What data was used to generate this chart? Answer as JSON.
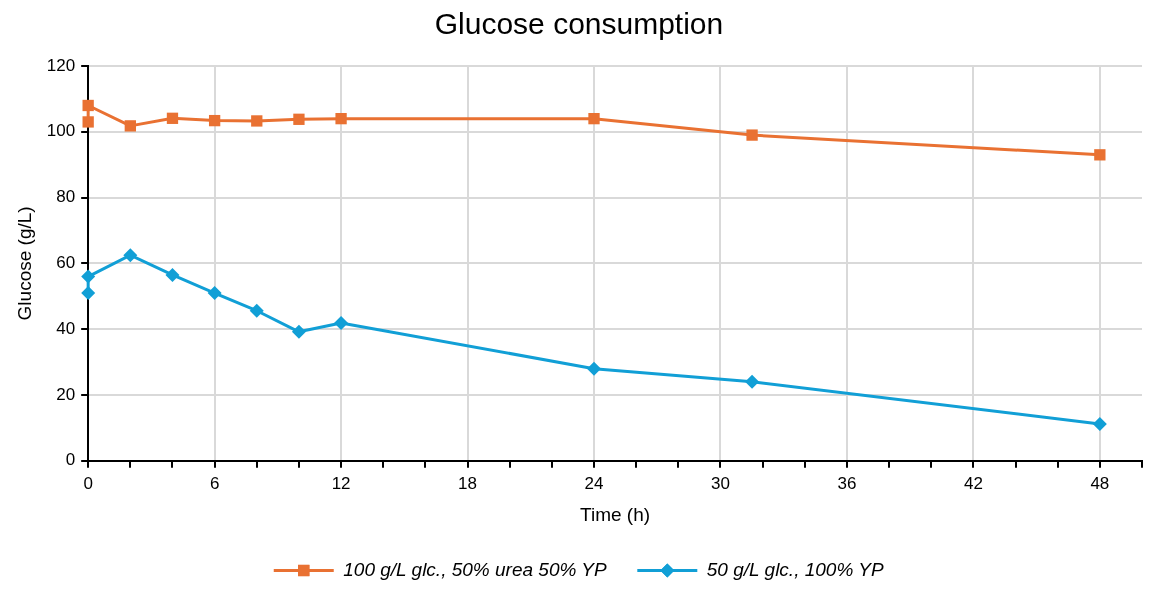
{
  "chart_data": {
    "type": "line",
    "title": "Glucose consumption",
    "xlabel": "Time (h)",
    "ylabel": "Glucose (g/L)",
    "xlim": [
      0,
      50
    ],
    "xticks": [
      0,
      {
        "value": 2,
        "label": null
      },
      {
        "value": 4,
        "label": null
      },
      6,
      {
        "value": 8,
        "label": null
      },
      {
        "value": 10,
        "label": null
      },
      12,
      {
        "value": 14,
        "label": null
      },
      {
        "value": 16,
        "label": null
      },
      18,
      {
        "value": 20,
        "label": null
      },
      {
        "value": 22,
        "label": null
      },
      24,
      {
        "value": 26,
        "label": null
      },
      {
        "value": 28,
        "label": null
      },
      30,
      {
        "value": 32,
        "label": null
      },
      {
        "value": 34,
        "label": null
      },
      36,
      {
        "value": 38,
        "label": null
      },
      {
        "value": 40,
        "label": null
      },
      42,
      {
        "value": 44,
        "label": null
      },
      {
        "value": 46,
        "label": null
      },
      48,
      {
        "value": 50,
        "label": null
      }
    ],
    "ylim": [
      0,
      120
    ],
    "yticks": [
      0,
      20,
      40,
      60,
      80,
      100,
      120
    ],
    "grid": true,
    "legend": "bottom",
    "line_style": "solid",
    "series": [
      {
        "name": "100 g/L glc., 50% urea 50% YP",
        "color": "#e97132",
        "marker": "square",
        "x": [
          0,
          0,
          2,
          4,
          6,
          8,
          10,
          12,
          24,
          31.5,
          48
        ],
        "values": [
          103,
          108,
          101.8,
          104.1,
          103.4,
          103.3,
          103.8,
          104,
          104,
          99,
          93
        ]
      },
      {
        "name": "50 g/L glc., 100% YP",
        "color": "#119fd6",
        "marker": "diamond",
        "x": [
          0,
          0,
          2,
          4,
          6,
          8,
          10,
          12,
          24,
          31.5,
          48
        ],
        "values": [
          51,
          56,
          62.5,
          56.5,
          51,
          45.6,
          39.2,
          41.9,
          28,
          24,
          11.2
        ]
      }
    ]
  }
}
